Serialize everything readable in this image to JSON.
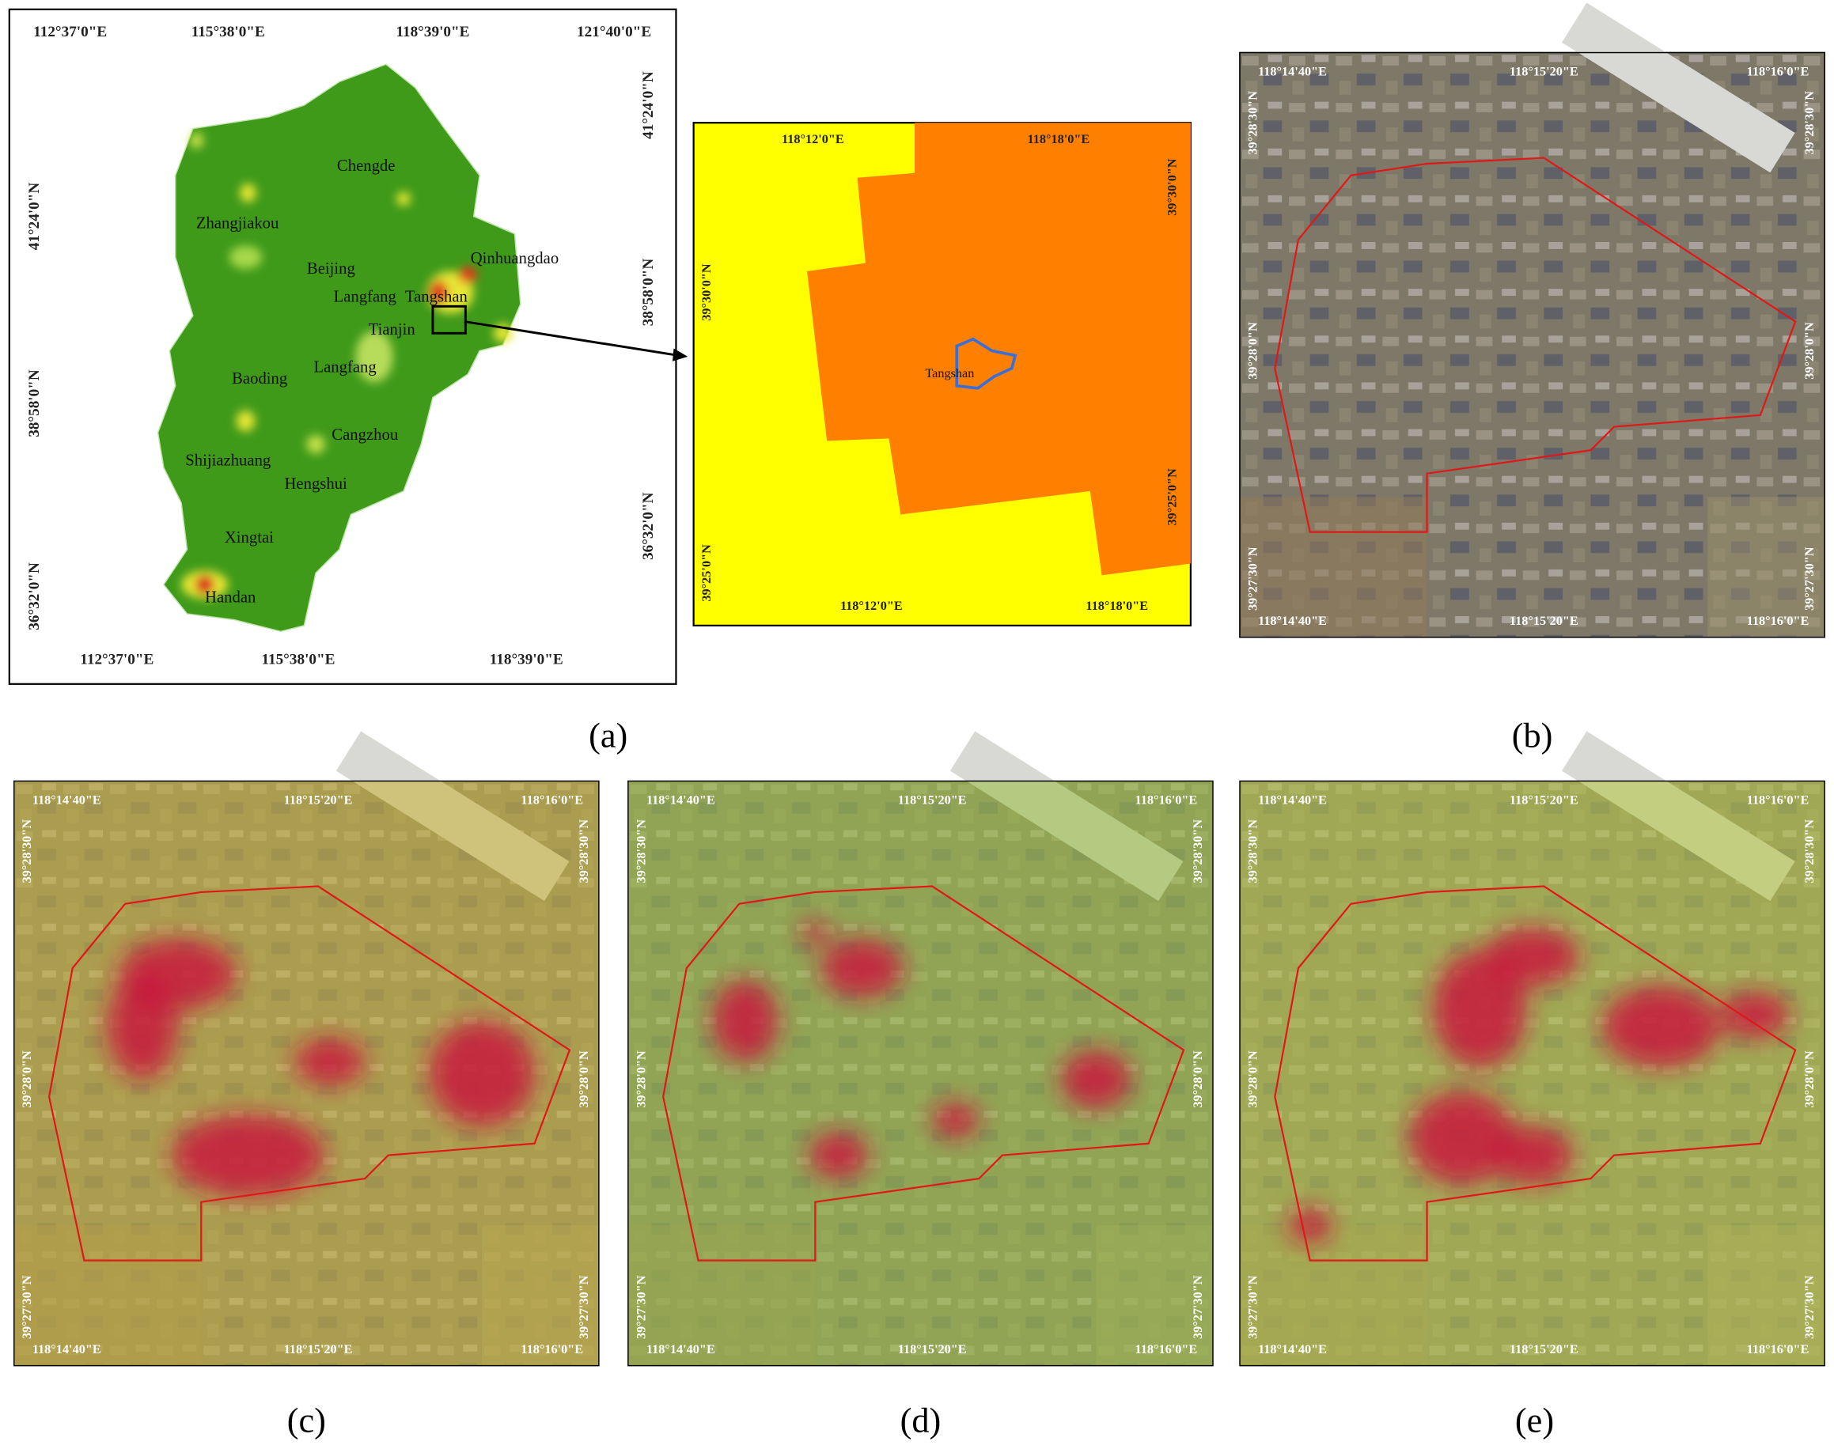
{
  "panel_a": {
    "label": "(a)",
    "map": {
      "top": [
        "112°37'0\"E",
        "115°38'0\"E",
        "118°39'0\"E",
        "121°40'0\"E"
      ],
      "bottom": [
        "112°37'0\"E",
        "115°38'0\"E",
        "118°39'0\"E"
      ],
      "left": [
        "41°24'0\"N",
        "38°58'0\"N",
        "36°32'0\"N"
      ],
      "right": [
        "41°24'0\"N",
        "38°58'0\"N",
        "36°32'0\"N"
      ],
      "places": [
        "Chengde",
        "Zhangjiakou",
        "Beijing",
        "Langfang",
        "Tangshan",
        "Qinhuangdao",
        "Tianjin",
        "Langfang",
        "Baoding",
        "Cangzhou",
        "Shijiazhuang",
        "Hengshui",
        "Xingtai",
        "Handan"
      ]
    },
    "inset": {
      "top": [
        "118°12'0\"E",
        "118°18'0\"E"
      ],
      "bottom": [
        "118°12'0\"E",
        "118°18'0\"E"
      ],
      "left": [
        "39°30'0\"N",
        "39°25'0\"N"
      ],
      "right": [
        "39°30'0\"N",
        "39°25'0\"N"
      ],
      "place": "Tangshan"
    }
  },
  "panels": [
    {
      "label": "(b)",
      "top": [
        "118°14'40\"E",
        "118°15'20\"E",
        "118°16'0\"E"
      ],
      "bottom": [
        "118°14'40\"E",
        "118°15'20\"E",
        "118°16'0\"E"
      ],
      "left": [
        "39°28'30\"N",
        "39°28'0\"N",
        "39°27'30\"N"
      ],
      "right": [
        "39°28'30\"N",
        "39°28'0\"N",
        "39°27'30\"N"
      ]
    },
    {
      "label": "(c)",
      "top": [
        "118°14'40\"E",
        "118°15'20\"E",
        "118°16'0\"E"
      ],
      "bottom": [
        "118°14'40\"E",
        "118°15'20\"E",
        "118°16'0\"E"
      ],
      "left": [
        "39°28'30\"N",
        "39°28'0\"N",
        "39°27'30\"N"
      ],
      "right": [
        "39°28'30\"N",
        "39°28'0\"N",
        "39°27'30\"N"
      ]
    },
    {
      "label": "(d)",
      "top": [
        "118°14'40\"E",
        "118°15'20\"E",
        "118°16'0\"E"
      ],
      "bottom": [
        "118°14'40\"E",
        "118°15'20\"E",
        "118°16'0\"E"
      ],
      "left": [
        "39°28'30\"N",
        "39°28'0\"N",
        "39°27'30\"N"
      ],
      "right": [
        "39°28'30\"N",
        "39°28'0\"N",
        "39°27'30\"N"
      ]
    },
    {
      "label": "(e)",
      "top": [
        "118°14'40\"E",
        "118°15'20\"E",
        "118°16'0\"E"
      ],
      "bottom": [
        "118°14'40\"E",
        "118°15'20\"E",
        "118°16'0\"E"
      ],
      "left": [
        "39°28'30\"N",
        "39°28'0\"N",
        "39°27'30\"N"
      ],
      "right": [
        "39°28'30\"N",
        "39°28'0\"N",
        "39°27'30\"N"
      ]
    }
  ]
}
